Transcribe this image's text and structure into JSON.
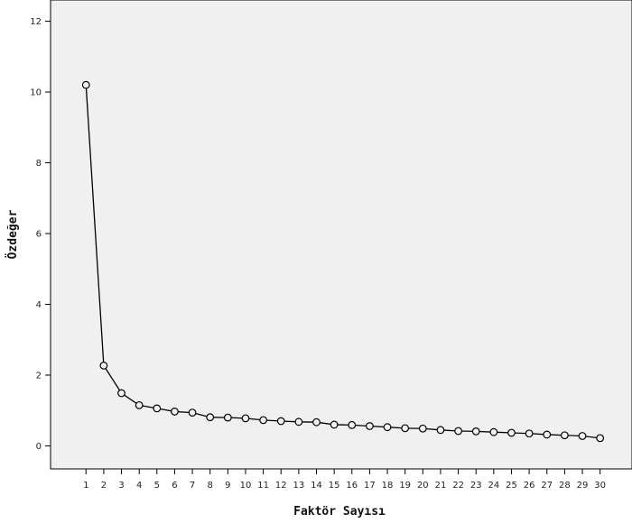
{
  "chart_data": {
    "type": "line",
    "title": "",
    "xlabel": "Faktör Sayısı",
    "ylabel": "Özdeğer",
    "x": [
      1,
      2,
      3,
      4,
      5,
      6,
      7,
      8,
      9,
      10,
      11,
      12,
      13,
      14,
      15,
      16,
      17,
      18,
      19,
      20,
      21,
      22,
      23,
      24,
      25,
      26,
      27,
      28,
      29,
      30
    ],
    "series": [
      {
        "values": [
          10.2,
          2.27,
          1.49,
          1.15,
          1.06,
          0.97,
          0.94,
          0.81,
          0.8,
          0.78,
          0.73,
          0.7,
          0.68,
          0.67,
          0.6,
          0.59,
          0.56,
          0.53,
          0.5,
          0.49,
          0.45,
          0.42,
          0.41,
          0.39,
          0.37,
          0.35,
          0.32,
          0.3,
          0.28,
          0.22
        ]
      }
    ],
    "yticks": [
      0,
      2,
      4,
      6,
      8,
      10,
      12
    ],
    "ylim": [
      -0.65,
      12.6
    ],
    "xlim": [
      -1,
      31.8
    ],
    "grid": false,
    "legend": "none",
    "colors": {
      "plot_background": "#f0f0f0",
      "line": "#000000",
      "marker_fill": "#f0f0f0",
      "axis": "#000000"
    }
  }
}
